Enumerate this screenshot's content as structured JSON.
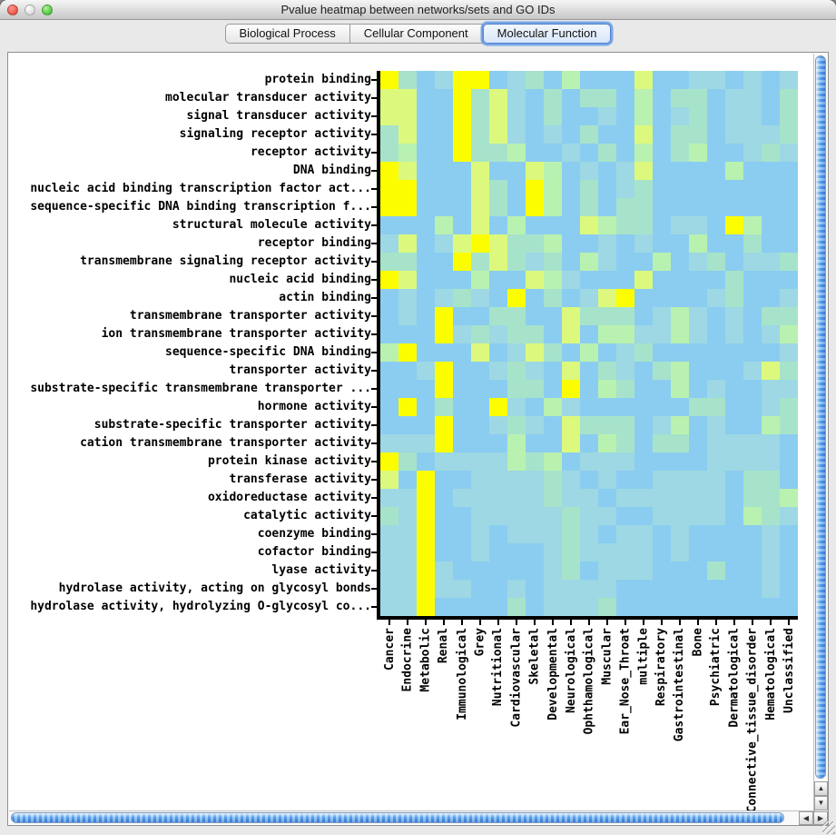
{
  "window": {
    "title": "Pvalue heatmap between networks/sets and GO IDs"
  },
  "tabs": [
    {
      "label": "Biological Process",
      "selected": false
    },
    {
      "label": "Cellular Component",
      "selected": false
    },
    {
      "label": "Molecular Function",
      "selected": true
    }
  ],
  "scrollbars": {
    "up_arrow": "▲",
    "down_arrow": "▼",
    "left_arrow": "◀",
    "right_arrow": "▶"
  },
  "chart_data": {
    "type": "heatmap",
    "title": "Pvalue heatmap between networks/sets and GO IDs",
    "rows": [
      "protein binding",
      "molecular transducer activity",
      "signal transducer activity",
      "signaling receptor activity",
      "receptor activity",
      "DNA binding",
      "nucleic acid binding transcription factor act...",
      "sequence-specific DNA binding transcription f...",
      "structural molecule activity",
      "receptor binding",
      "transmembrane signaling receptor activity",
      "nucleic acid binding",
      "actin binding",
      "transmembrane transporter activity",
      "ion transmembrane transporter activity",
      "sequence-specific DNA binding",
      "transporter activity",
      "substrate-specific transmembrane transporter ...",
      "hormone activity",
      "substrate-specific transporter activity",
      "cation transmembrane transporter activity",
      "protein kinase activity",
      "transferase activity",
      "oxidoreductase activity",
      "catalytic activity",
      "coenzyme binding",
      "cofactor binding",
      "lyase activity",
      "hydrolase activity, acting on glycosyl bonds",
      "hydrolase activity, hydrolyzing O-glycosyl co..."
    ],
    "columns": [
      "Cancer",
      "Endocrine",
      "Metabolic",
      "Renal",
      "Immunological",
      "Grey",
      "Nutritional",
      "Cardiovascular",
      "Skeletal",
      "Developmental",
      "Neurological",
      "Ophthamological",
      "Muscular",
      "Ear_Nose_Throat",
      "multiple",
      "Respiratory",
      "Gastrointestinal",
      "Bone",
      "Psychiatric",
      "Dermatological",
      "Connective_tissue_disorder",
      "Hematological",
      "Unclassified"
    ],
    "palette": {
      "b": "#8bcdf0",
      "c": "#9dd8e4",
      "t": "#a7e3ca",
      "g": "#b9f1b0",
      "y": "#dcf97d",
      "Y": "#fcfe00"
    },
    "cells": [
      "YtbcYYbctbgbbbybbccbcbc",
      "yybbYtycbtbttbgbttbccbt",
      "yybbYtycbtbbcbgbctbccbt",
      "tybbYtycbcbtbbybttbccct",
      "tgbbYttgbbcbtbgbtgbbctc",
      "Yybbbybbygbcbcybbbbgbbb",
      "YYbbbytbYgbtbctbbbbbbbb",
      "YYbbbytbYgbtbttbbbbbbbb",
      "bbbgbybgbbbygttbccbYgbb",
      "cybcyYyttgbbcbcbbgbbtbb",
      "ttbbYtytctbgcbbgbctbcct",
      "YybbbgbbygcbbbybbbbtbbC",
      "bcbctcbYbtbcyYbbbbctbbc",
      "bcbYbbttbbytttbcgcbcbtt",
      "bbbYctcttbybggccgcbcbcg",
      "gYbbbybcytbgbctbbbbbbbc",
      "bbcYbbctcbybtcbtgbbbcyt",
      "bbbYbbbttbYbgtbbgbcbbcc",
      "bYbtbbYcbgcbbbbbbttbbct",
      "bbbYbbctcbytttbcgbcbbgt",
      "cccYbbbgbbybgtbttbccccb",
      "Ytbccccgtgbcccbbbbccccb",
      "ybYbbcccctcbcbbccccbttb",
      "ccYbccccctccbccccccbttg",
      "tcYbbccccctccbbccccbgtc",
      "ccYbbcbccctcbccbcbbbbcb",
      "ccYbbcbbbctccccbcbbbbcb",
      "ccYcbbbbbctbcccbbbtbbcb",
      "ccYccbbcbccccbbbbbbbbcb",
      "ccYbbbbtbccctbbbbbbbbbb"
    ],
    "grid": false,
    "cell_size_px": 20
  }
}
